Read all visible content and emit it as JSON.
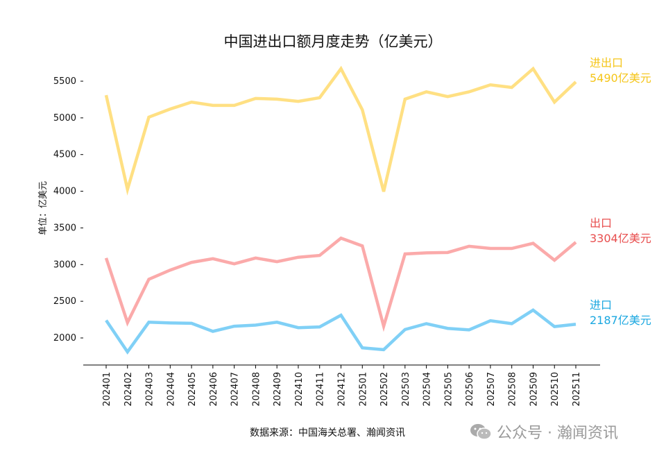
{
  "chart_data": {
    "type": "line",
    "title": "中国进出口额月度走势（亿美元）",
    "ylabel": "单位：亿美元",
    "xlabel": "",
    "ylim": [
      1620,
      5750
    ],
    "yticks": [
      2000,
      2500,
      3000,
      3500,
      4000,
      4500,
      5000,
      5500
    ],
    "grid": false,
    "legend": "none",
    "categories": [
      "202401",
      "202402",
      "202403",
      "202404",
      "202405",
      "202406",
      "202407",
      "202408",
      "202409",
      "202410",
      "202411",
      "202412",
      "202501",
      "202502",
      "202503",
      "202504",
      "202505",
      "202506",
      "202507",
      "202508",
      "202509",
      "202510",
      "202511"
    ],
    "series": [
      {
        "name": "进出口",
        "end_label": "5490亿美元",
        "line_color": "#FFE083",
        "label_color": "#F5C518",
        "values": [
          5310,
          4025,
          5010,
          5120,
          5215,
          5170,
          5170,
          5265,
          5255,
          5225,
          5275,
          5670,
          5110,
          3995,
          5255,
          5355,
          5290,
          5355,
          5450,
          5415,
          5670,
          5215,
          5490
        ]
      },
      {
        "name": "出口",
        "end_label": "3304亿美元",
        "line_color": "#FBAAAA",
        "label_color": "#E84D4D",
        "values": [
          3090,
          2210,
          2800,
          2925,
          3030,
          3080,
          3010,
          3090,
          3040,
          3100,
          3125,
          3360,
          3255,
          2160,
          3145,
          3160,
          3165,
          3250,
          3220,
          3220,
          3290,
          3060,
          3304
        ]
      },
      {
        "name": "进口",
        "end_label": "2187亿美元",
        "line_color": "#80D0F6",
        "label_color": "#1AA7E0",
        "values": [
          2240,
          1810,
          2215,
          2205,
          2200,
          2090,
          2160,
          2175,
          2215,
          2140,
          2150,
          2310,
          1865,
          1840,
          2115,
          2195,
          2130,
          2110,
          2235,
          2195,
          2380,
          2155,
          2187
        ]
      }
    ]
  },
  "source": "数据来源：中国海关总署、瀚闻资讯",
  "watermark": {
    "text": "公众号 · 瀚闻资讯",
    "icon": "wechat-icon"
  }
}
